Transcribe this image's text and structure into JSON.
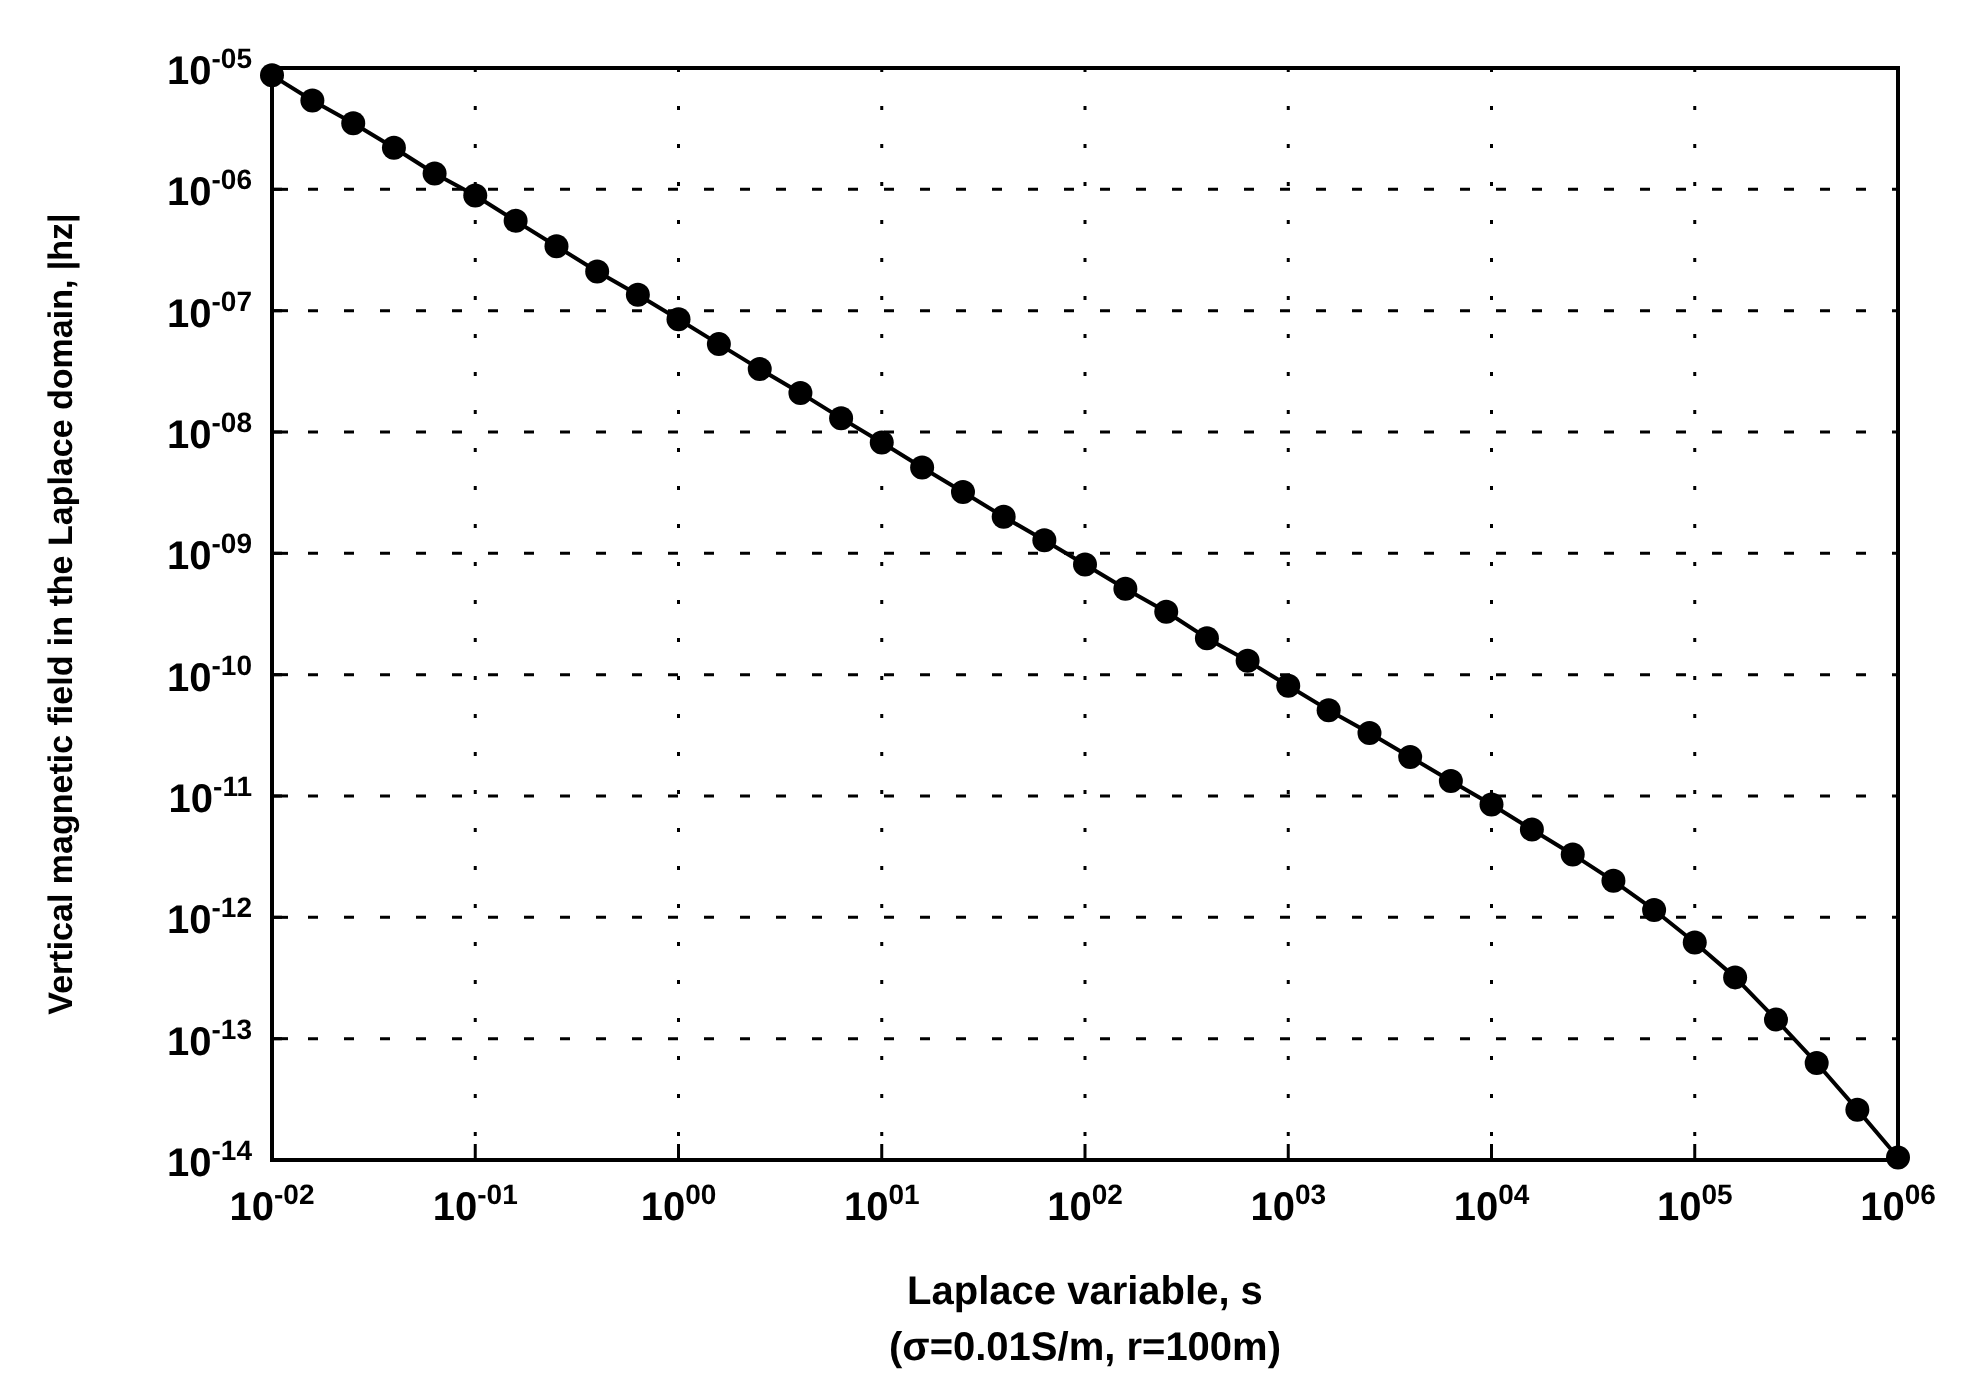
{
  "chart_data": {
    "type": "line",
    "xlabel": "Laplace variable, s\n(σ=0.01S/m, r=100m)",
    "ylabel": "Vertical magnetic field in the Laplace domain, |hz|",
    "log": "xy",
    "grid": true,
    "marker": "circle",
    "line_style": "solid",
    "xlim": [
      0.01,
      1000000
    ],
    "ylim": [
      1e-14,
      1e-05
    ],
    "xticks": [
      {
        "value": 0.01,
        "label": "10$^{-02}$"
      },
      {
        "value": 0.1,
        "label": "10$^{-01}$"
      },
      {
        "value": 1,
        "label": "10$^{00}$"
      },
      {
        "value": 10,
        "label": "10$^{01}$"
      },
      {
        "value": 100,
        "label": "10$^{02}$"
      },
      {
        "value": 1000,
        "label": "10$^{03}$"
      },
      {
        "value": 10000,
        "label": "10$^{04}$"
      },
      {
        "value": 100000,
        "label": "10$^{05}$"
      },
      {
        "value": 1000000,
        "label": "10$^{06}$"
      }
    ],
    "yticks": [
      {
        "value": 1e-14,
        "label": "10$^{-14}$"
      },
      {
        "value": 1e-13,
        "label": "10$^{-13}$"
      },
      {
        "value": 1e-12,
        "label": "10$^{-12}$"
      },
      {
        "value": 1e-11,
        "label": "10$^{-11}$"
      },
      {
        "value": 1e-10,
        "label": "10$^{-10}$"
      },
      {
        "value": 1e-09,
        "label": "10$^{-09}$"
      },
      {
        "value": 1e-08,
        "label": "10$^{-08}$"
      },
      {
        "value": 1e-07,
        "label": "10$^{-07}$"
      },
      {
        "value": 1e-06,
        "label": "10$^{-06}$"
      },
      {
        "value": 1e-05,
        "label": "10$^{-05}$"
      }
    ],
    "x": [
      0.01,
      0.0158,
      0.0251,
      0.0398,
      0.0631,
      0.1,
      0.158,
      0.251,
      0.398,
      0.631,
      1,
      1.58,
      2.51,
      3.98,
      6.31,
      10,
      15.8,
      25.1,
      39.8,
      63.1,
      100,
      158,
      251,
      398,
      631,
      1000,
      1580,
      2510,
      3980,
      6310,
      10000,
      15800,
      25100,
      39800,
      63100,
      100000,
      158000,
      251000,
      398000,
      631000,
      1000000
    ],
    "series": [
      {
        "color": "#000000",
        "values": [
          8.7e-06,
          5.4e-06,
          3.5e-06,
          2.2e-06,
          1.35e-06,
          8.9e-07,
          5.5e-07,
          3.4e-07,
          2.1e-07,
          1.35e-07,
          8.5e-08,
          5.3e-08,
          3.3e-08,
          2.1e-08,
          1.3e-08,
          8.2e-09,
          5.1e-09,
          3.2e-09,
          2e-09,
          1.28e-09,
          8.1e-10,
          5.1e-10,
          3.3e-10,
          2e-10,
          1.3e-10,
          8.1e-11,
          5.1e-11,
          3.3e-11,
          2.1e-11,
          1.33e-11,
          8.5e-12,
          5.3e-12,
          3.3e-12,
          2e-12,
          1.15e-12,
          6.2e-13,
          3.2e-13,
          1.44e-13,
          6.3e-14,
          2.6e-14,
          1.05e-14
        ]
      }
    ]
  }
}
